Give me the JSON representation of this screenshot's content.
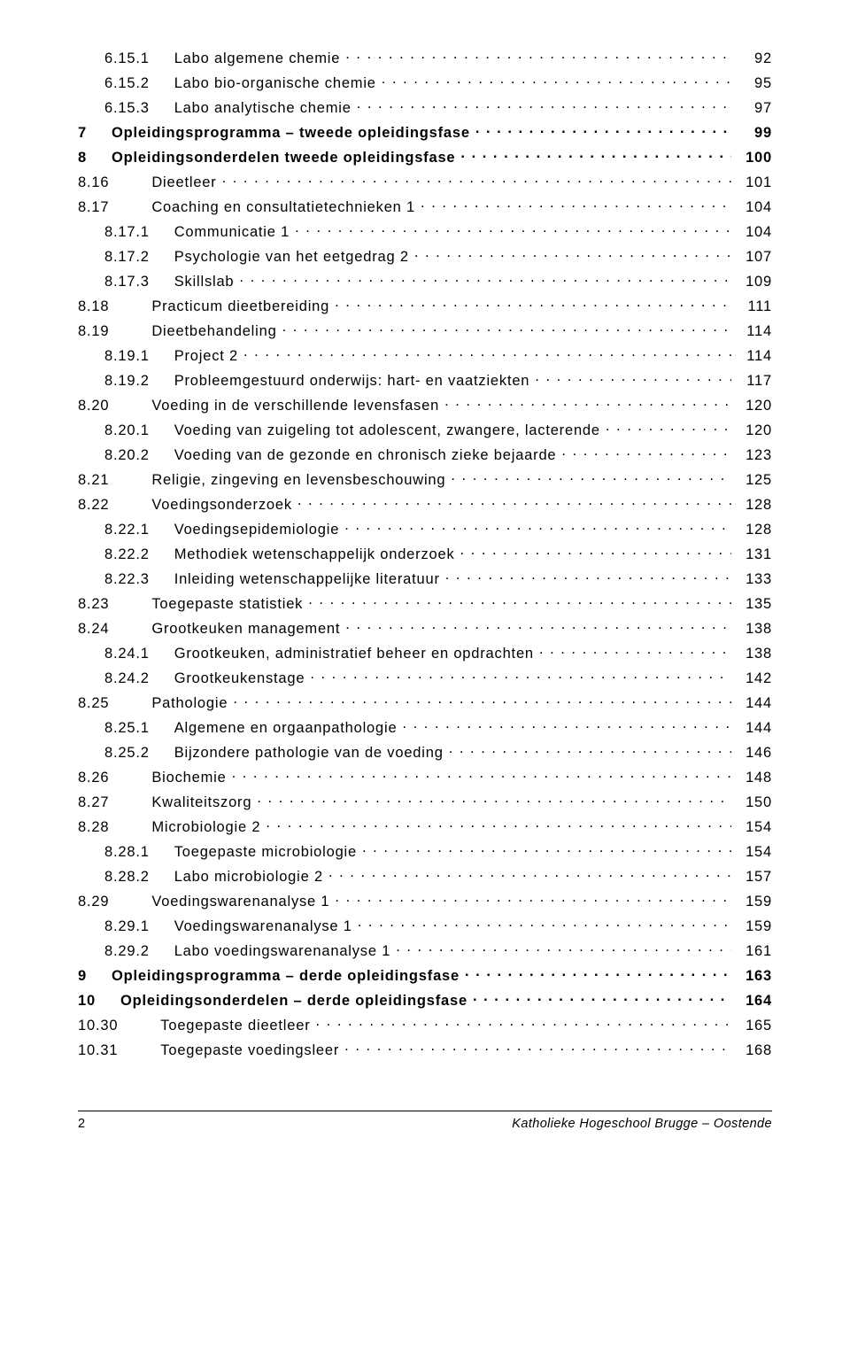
{
  "toc": [
    {
      "level": "l3",
      "bold": false,
      "num": "6.15.1",
      "title": "Labo algemene chemie",
      "page": "92"
    },
    {
      "level": "l3",
      "bold": false,
      "num": "6.15.2",
      "title": "Labo bio-organische chemie",
      "page": "95"
    },
    {
      "level": "l3",
      "bold": false,
      "num": "6.15.3",
      "title": "Labo analytische chemie",
      "page": "97"
    },
    {
      "level": "l2b",
      "bold": true,
      "num": "7",
      "title": "Opleidingsprogramma – tweede opleidingsfase",
      "page": "99"
    },
    {
      "level": "l2b",
      "bold": true,
      "num": "8",
      "title": "Opleidingsonderdelen tweede opleidingsfase",
      "page": "100"
    },
    {
      "level": "l2",
      "bold": false,
      "num": "8.16",
      "title": "Dieetleer",
      "page": "101"
    },
    {
      "level": "l2",
      "bold": false,
      "num": "8.17",
      "title": "Coaching en consultatietechnieken 1",
      "page": "104"
    },
    {
      "level": "l3",
      "bold": false,
      "num": "8.17.1",
      "title": "Communicatie 1",
      "page": "104"
    },
    {
      "level": "l3",
      "bold": false,
      "num": "8.17.2",
      "title": "Psychologie van het eetgedrag 2",
      "page": "107"
    },
    {
      "level": "l3",
      "bold": false,
      "num": "8.17.3",
      "title": "Skillslab",
      "page": "109"
    },
    {
      "level": "l2",
      "bold": false,
      "num": "8.18",
      "title": "Practicum dieetbereiding",
      "page": "111"
    },
    {
      "level": "l2",
      "bold": false,
      "num": "8.19",
      "title": "Dieetbehandeling",
      "page": "114"
    },
    {
      "level": "l3",
      "bold": false,
      "num": "8.19.1",
      "title": "Project 2",
      "page": "114"
    },
    {
      "level": "l3",
      "bold": false,
      "num": "8.19.2",
      "title": "Probleemgestuurd onderwijs: hart- en vaatziekten",
      "page": "117"
    },
    {
      "level": "l2",
      "bold": false,
      "num": "8.20",
      "title": "Voeding in de verschillende levensfasen",
      "page": "120"
    },
    {
      "level": "l3",
      "bold": false,
      "num": "8.20.1",
      "title": "Voeding van zuigeling tot adolescent, zwangere, lacterende",
      "page": "120"
    },
    {
      "level": "l3",
      "bold": false,
      "num": "8.20.2",
      "title": "Voeding van de gezonde en chronisch zieke bejaarde",
      "page": "123"
    },
    {
      "level": "l2",
      "bold": false,
      "num": "8.21",
      "title": "Religie, zingeving en levensbeschouwing",
      "page": "125"
    },
    {
      "level": "l2",
      "bold": false,
      "num": "8.22",
      "title": "Voedingsonderzoek",
      "page": "128"
    },
    {
      "level": "l3",
      "bold": false,
      "num": "8.22.1",
      "title": "Voedingsepidemiologie",
      "page": "128"
    },
    {
      "level": "l3",
      "bold": false,
      "num": "8.22.2",
      "title": "Methodiek wetenschappelijk onderzoek",
      "page": "131"
    },
    {
      "level": "l3",
      "bold": false,
      "num": "8.22.3",
      "title": "Inleiding wetenschappelijke literatuur",
      "page": "133"
    },
    {
      "level": "l2",
      "bold": false,
      "num": "8.23",
      "title": "Toegepaste statistiek",
      "page": "135"
    },
    {
      "level": "l2",
      "bold": false,
      "num": "8.24",
      "title": "Grootkeuken management",
      "page": "138"
    },
    {
      "level": "l3",
      "bold": false,
      "num": "8.24.1",
      "title": "Grootkeuken, administratief beheer en opdrachten",
      "page": "138"
    },
    {
      "level": "l3",
      "bold": false,
      "num": "8.24.2",
      "title": "Grootkeukenstage",
      "page": "142"
    },
    {
      "level": "l2",
      "bold": false,
      "num": "8.25",
      "title": "Pathologie",
      "page": "144"
    },
    {
      "level": "l3",
      "bold": false,
      "num": "8.25.1",
      "title": "Algemene en orgaanpathologie",
      "page": "144"
    },
    {
      "level": "l3",
      "bold": false,
      "num": "8.25.2",
      "title": "Bijzondere pathologie van de voeding",
      "page": "146"
    },
    {
      "level": "l2",
      "bold": false,
      "num": "8.26",
      "title": "Biochemie",
      "page": "148"
    },
    {
      "level": "l2",
      "bold": false,
      "num": "8.27",
      "title": "Kwaliteitszorg",
      "page": "150"
    },
    {
      "level": "l2",
      "bold": false,
      "num": "8.28",
      "title": "Microbiologie 2",
      "page": "154"
    },
    {
      "level": "l3",
      "bold": false,
      "num": "8.28.1",
      "title": "Toegepaste microbiologie",
      "page": "154"
    },
    {
      "level": "l3",
      "bold": false,
      "num": "8.28.2",
      "title": "Labo microbiologie 2",
      "page": "157"
    },
    {
      "level": "l2",
      "bold": false,
      "num": "8.29",
      "title": "Voedingswarenanalyse 1",
      "page": "159"
    },
    {
      "level": "l3",
      "bold": false,
      "num": "8.29.1",
      "title": "Voedingswarenanalyse 1",
      "page": "159"
    },
    {
      "level": "l3",
      "bold": false,
      "num": "8.29.2",
      "title": "Labo voedingswarenanalyse 1",
      "page": "161"
    },
    {
      "level": "l2b",
      "bold": true,
      "num": "9",
      "title": "Opleidingsprogramma – derde opleidingsfase",
      "page": "163"
    },
    {
      "level": "l2b",
      "bold": true,
      "num": "10",
      "title": "Opleidingsonderdelen – derde opleidingsfase",
      "page": "164"
    },
    {
      "level": "l2",
      "bold": false,
      "num": "10.30",
      "title": "Toegepaste dieetleer",
      "page": "165"
    },
    {
      "level": "l2",
      "bold": false,
      "num": "10.31",
      "title": "Toegepaste voedingsleer",
      "page": "168"
    }
  ],
  "footer": {
    "page_number": "2",
    "institution": "Katholieke Hogeschool Brugge – Oostende"
  }
}
